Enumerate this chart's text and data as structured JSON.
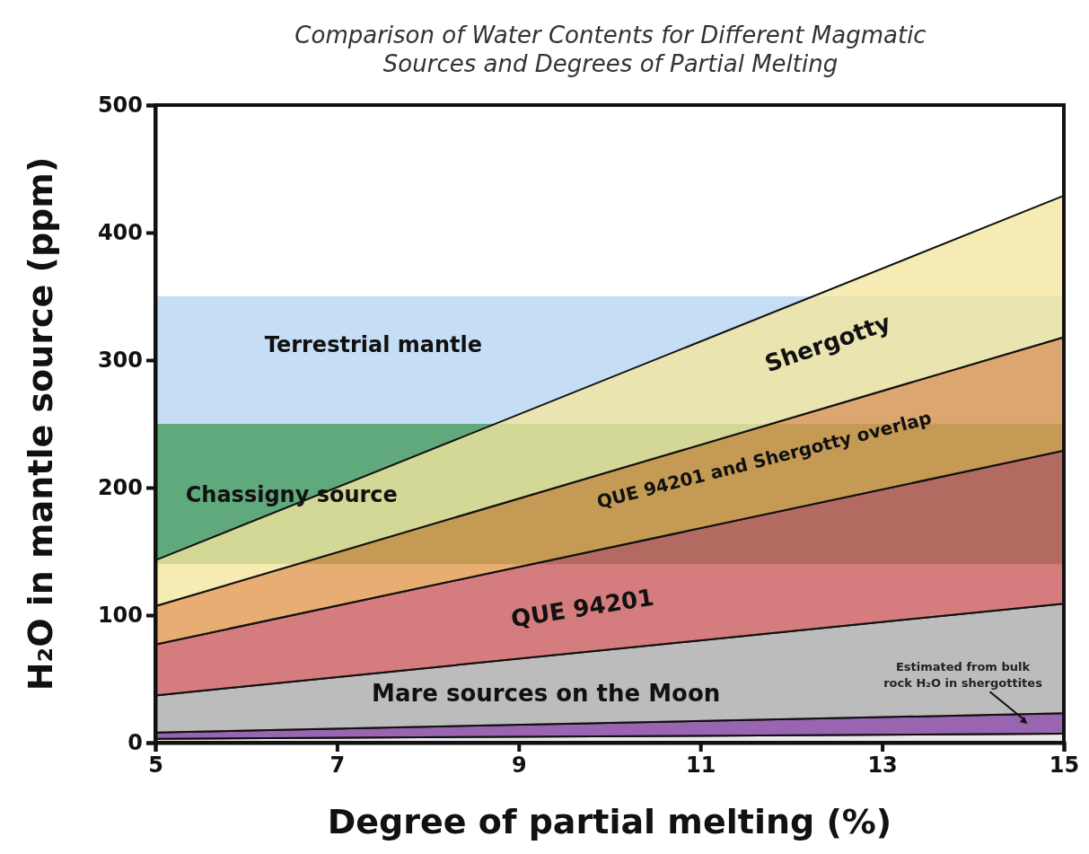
{
  "chart_data": {
    "type": "area",
    "title": "Comparison of Water Contents for Different Magmatic Sources and Degrees of Partial Melting",
    "xlabel": "Degree of partial melting (%)",
    "ylabel": "H₂O in mantle source (ppm)",
    "xlim": [
      5,
      15
    ],
    "xticks": [
      5,
      7,
      9,
      11,
      13,
      15
    ],
    "ylim": [
      0,
      500
    ],
    "yticks": [
      0,
      100,
      200,
      300,
      400,
      500
    ],
    "grid": false,
    "stacked": true,
    "x": [
      5,
      15
    ],
    "bands": [
      {
        "axis": "y",
        "from": 250,
        "to": 350,
        "label": "Terrestrial mantle",
        "color": "#c6ddf6"
      },
      {
        "axis": "y",
        "from": 140,
        "to": 250,
        "label": "Chassigny source",
        "color": "#5fa97c"
      }
    ],
    "series": [
      {
        "color": "#e4e4e4",
        "values": [
          3,
          7
        ]
      },
      {
        "color": "#7d3a9a",
        "values": [
          5,
          16
        ]
      },
      {
        "name": "Mare sources on the Moon",
        "color": "#a9a9a9",
        "values": [
          29,
          86
        ]
      },
      {
        "name": "QUE 94201",
        "color": "#c9585a",
        "values": [
          40,
          120
        ]
      },
      {
        "name": "QUE 94201 and Shergotty overlap",
        "color": "#e0964a",
        "values": [
          30,
          89
        ]
      },
      {
        "name": "Shergotty",
        "color": "#f4e59e",
        "values": [
          36,
          111
        ]
      }
    ],
    "annotations": [
      "Estimated from bulk rock H₂O in shergottites"
    ]
  }
}
